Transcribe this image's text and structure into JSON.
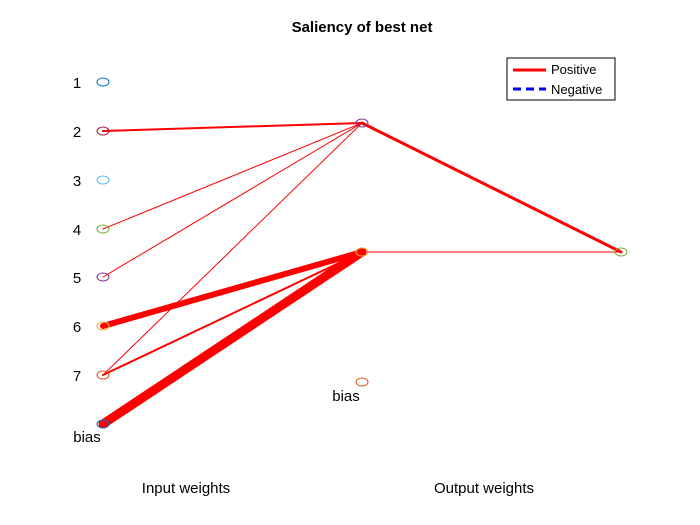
{
  "title": "Saliency of best net",
  "input_nodes": [
    {
      "label": "1",
      "color": "#0072bd"
    },
    {
      "label": "2",
      "color": "#a2142f"
    },
    {
      "label": "3",
      "color": "#4dbeee"
    },
    {
      "label": "4",
      "color": "#77ac30"
    },
    {
      "label": "5",
      "color": "#7e2f8e"
    },
    {
      "label": "6",
      "color": "#edb120"
    },
    {
      "label": "7",
      "color": "#d95319"
    },
    {
      "label": "bias",
      "color": "#0072bd"
    }
  ],
  "hidden_nodes": [
    {
      "label": "",
      "color": "#7e2f8e"
    },
    {
      "label": "",
      "color": "#edb120"
    },
    {
      "label": "bias",
      "color": "#d95319"
    }
  ],
  "output_nodes": [
    {
      "label": "",
      "color": "#77ac30"
    }
  ],
  "input_edges": [
    {
      "from": 1,
      "to": 0,
      "sign": "positive",
      "weight": 2
    },
    {
      "from": 3,
      "to": 0,
      "sign": "positive",
      "weight": 1
    },
    {
      "from": 4,
      "to": 0,
      "sign": "positive",
      "weight": 1
    },
    {
      "from": 6,
      "to": 0,
      "sign": "positive",
      "weight": 1
    },
    {
      "from": 5,
      "to": 1,
      "sign": "positive",
      "weight": 6
    },
    {
      "from": 6,
      "to": 1,
      "sign": "positive",
      "weight": 2
    },
    {
      "from": 7,
      "to": 1,
      "sign": "positive",
      "weight": 9
    }
  ],
  "output_edges": [
    {
      "from": 0,
      "to": 0,
      "sign": "positive",
      "weight": 3
    },
    {
      "from": 1,
      "to": 0,
      "sign": "positive",
      "weight": 1
    }
  ],
  "legend": {
    "position": "top-right",
    "entries": [
      {
        "label": "Positive",
        "color": "#ff0000",
        "style": "solid"
      },
      {
        "label": "Negative",
        "color": "#0000ff",
        "style": "dashed"
      }
    ]
  },
  "column_labels": {
    "input": "Input weights",
    "output": "Output weights"
  }
}
